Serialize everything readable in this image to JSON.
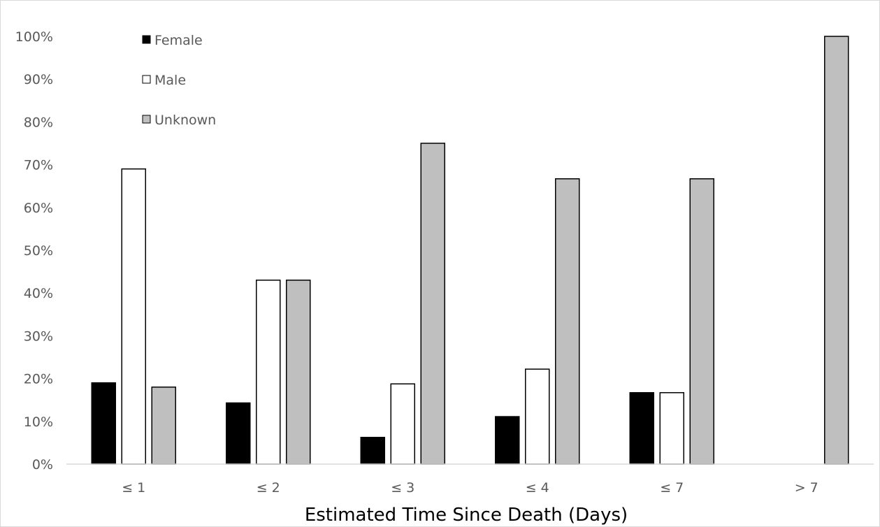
{
  "chart_data": {
    "type": "bar",
    "title": "",
    "xlabel": "Estimated Time Since Death (Days)",
    "ylabel": "",
    "categories": [
      "≤ 1",
      "≤ 2",
      "≤ 3",
      "≤ 4",
      "≤ 7",
      "> 7"
    ],
    "series": [
      {
        "name": "Female",
        "color": "#000000",
        "values": [
          0.19,
          0.143,
          0.0625,
          0.111,
          0.167,
          0
        ]
      },
      {
        "name": "Male",
        "color": "#ffffff",
        "values": [
          0.69,
          0.43,
          0.1875,
          0.222,
          0.167,
          0
        ]
      },
      {
        "name": "Unknown",
        "color": "#bfbfbf",
        "values": [
          0.18,
          0.43,
          0.75,
          0.667,
          0.667,
          1.0
        ]
      }
    ],
    "ylim": [
      0,
      1
    ],
    "yticks": [
      "0%",
      "10%",
      "20%",
      "30%",
      "40%",
      "50%",
      "60%",
      "70%",
      "80%",
      "90%",
      "100%"
    ],
    "grid": false,
    "legend_position": "top-left",
    "bar_outline": "#000000"
  }
}
